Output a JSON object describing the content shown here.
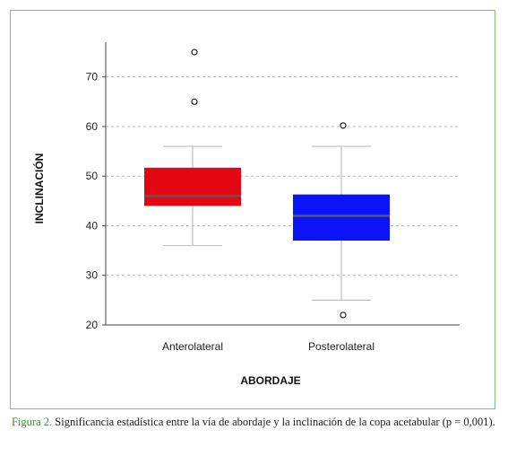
{
  "chart_data": {
    "type": "boxplot",
    "xlabel": "ABORDAJE",
    "ylabel": "INCLINACIÓN",
    "ylim": [
      20,
      77
    ],
    "yticks": [
      20,
      30,
      40,
      50,
      60,
      70
    ],
    "grid": true,
    "categories": [
      "Anterolateral",
      "Posterolateral"
    ],
    "boxes": [
      {
        "category": "Anterolateral",
        "whisker_low": 36,
        "q1": 44,
        "median": 46,
        "q3": 51.7,
        "whisker_high": 56,
        "outliers": [
          65,
          75
        ],
        "color": "#e30613"
      },
      {
        "category": "Posterolateral",
        "whisker_low": 25,
        "q1": 37,
        "median": 42,
        "q3": 46.3,
        "whisker_high": 56,
        "outliers": [
          22,
          60.2
        ],
        "color": "#0a14f5"
      }
    ],
    "median_color": "#5a5a5a",
    "whisker_color": "#bfbfbf"
  },
  "caption": {
    "label": "Figura 2.",
    "text": " Significancia estadística entre la vía de abordaje y la inclinación de la copa acetabular (p = 0,001)."
  },
  "colors": {
    "frame": "#7dbf7a",
    "caption_label": "#3b8a2e"
  }
}
